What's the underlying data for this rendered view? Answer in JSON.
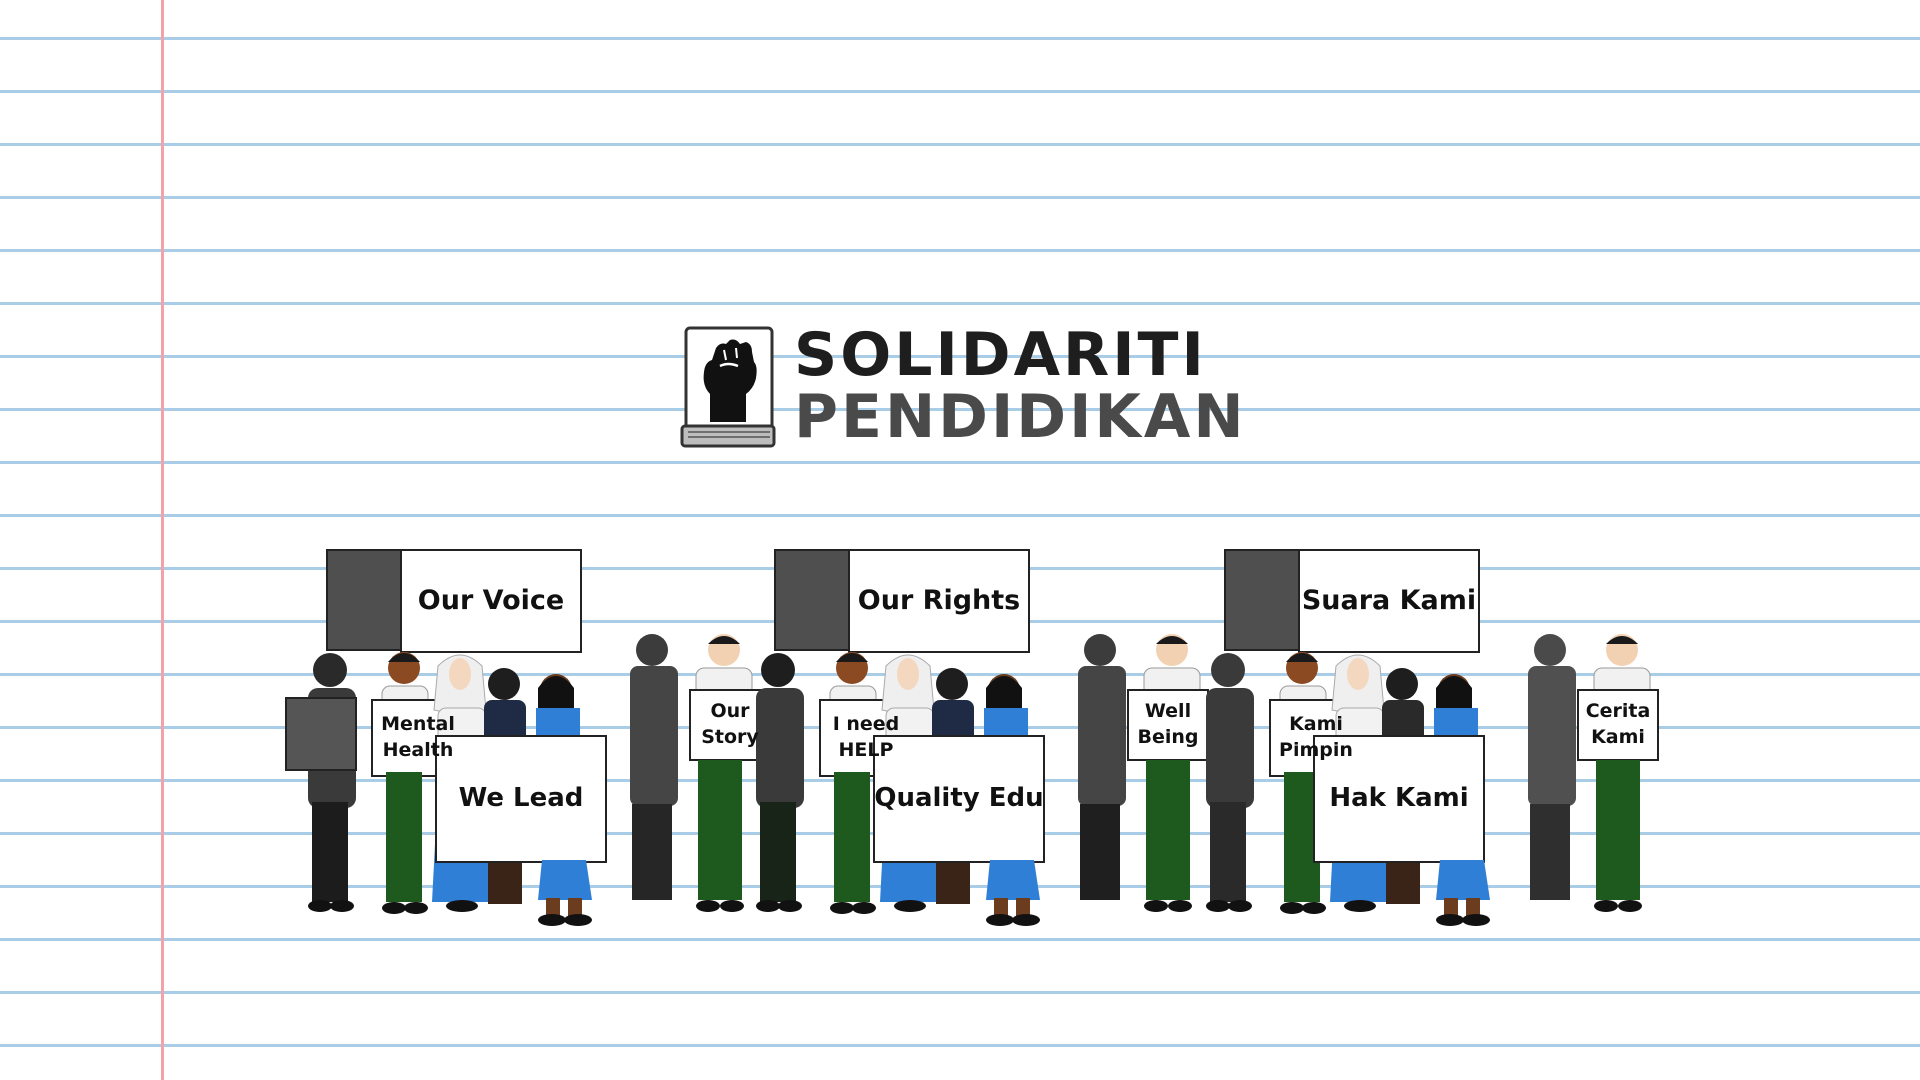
{
  "logo": {
    "line1": "SOLIDARITI",
    "line2": "PENDIDIKAN",
    "icon": "raised-fist-book-icon"
  },
  "signs": {
    "our_voice": "Our Voice",
    "our_rights": "Our Rights",
    "suara_kami": "Suara Kami",
    "mental_health": "Mental Health",
    "we_lead": "We Lead",
    "our_story": "Our Story",
    "i_need_help": "I need HELP",
    "quality_edu": "Quality Edu",
    "well_being": "Well Being",
    "kami_pimpin": "Kami Pimpin",
    "hak_kami": "Hak Kami",
    "cerita_kami": "Cerita Kami"
  },
  "colors": {
    "paper_line": "#a9cde6",
    "margin_line": "#f2a3aa",
    "trousers_green": "#1e5a1e",
    "skirt_blue": "#2f7fd6",
    "shadow_gray": "#4f4f4f"
  }
}
